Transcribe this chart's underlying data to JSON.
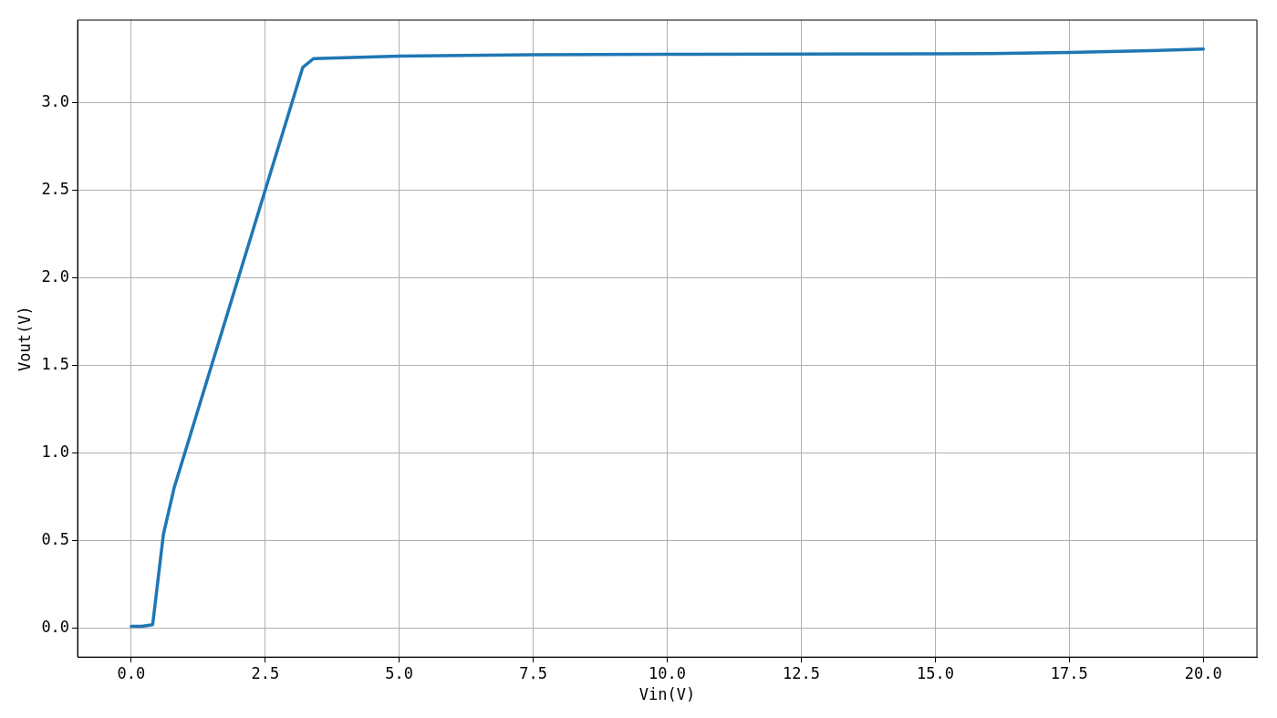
{
  "chart_data": {
    "type": "line",
    "xlabel": "Vin(V)",
    "ylabel": "Vout(V)",
    "x": [
      0,
      0.2,
      0.4,
      0.6,
      0.8,
      3.2,
      3.4,
      5,
      7.5,
      10,
      12.5,
      15,
      16,
      17.5,
      19,
      20
    ],
    "series": [
      {
        "color": "#1f77b4",
        "values": [
          0.01,
          0.01,
          0.02,
          0.535,
          0.8,
          3.2,
          3.25,
          3.265,
          3.272,
          3.275,
          3.276,
          3.277,
          3.279,
          3.285,
          3.295,
          3.305
        ]
      }
    ],
    "xlim": [
      -1,
      21
    ],
    "xticks": [
      {
        "value": 0,
        "label": "0.0"
      },
      {
        "value": 2.5,
        "label": "2.5"
      },
      {
        "value": 5,
        "label": "5.0"
      },
      {
        "value": 7.5,
        "label": "7.5"
      },
      {
        "value": 10,
        "label": "10.0"
      },
      {
        "value": 12.5,
        "label": "12.5"
      },
      {
        "value": 15,
        "label": "15.0"
      },
      {
        "value": 17.5,
        "label": "17.5"
      },
      {
        "value": 20,
        "label": "20.0"
      }
    ],
    "ylim": [
      -0.165,
      3.47
    ],
    "yticks": [
      {
        "value": 0,
        "label": "0.0"
      },
      {
        "value": 0.5,
        "label": "0.5"
      },
      {
        "value": 1,
        "label": "1.0"
      },
      {
        "value": 1.5,
        "label": "1.5"
      },
      {
        "value": 2,
        "label": "2.0"
      },
      {
        "value": 2.5,
        "label": "2.5"
      },
      {
        "value": 3,
        "label": "3.0"
      }
    ],
    "grid": true,
    "legend": false,
    "marker": "none",
    "line_style": "solid"
  }
}
